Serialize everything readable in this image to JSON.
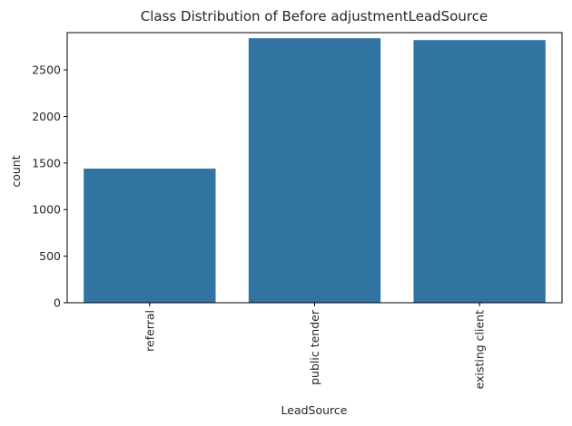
{
  "chart_data": {
    "type": "bar",
    "title": "Class Distribution of Before adjustmentLeadSource",
    "xlabel": "LeadSource",
    "ylabel": "count",
    "categories": [
      "referral",
      "public tender",
      "existing client"
    ],
    "values": [
      1440,
      2840,
      2820
    ],
    "ylim": [
      0,
      2900
    ],
    "yticks": [
      0,
      500,
      1000,
      1500,
      2000,
      2500
    ],
    "ytick_labels": [
      "0",
      "500",
      "1000",
      "1500",
      "2000",
      "2500"
    ],
    "grid": false,
    "legend": "none",
    "bar_color": "#3274a1",
    "xtick_rotation": "vertical"
  }
}
